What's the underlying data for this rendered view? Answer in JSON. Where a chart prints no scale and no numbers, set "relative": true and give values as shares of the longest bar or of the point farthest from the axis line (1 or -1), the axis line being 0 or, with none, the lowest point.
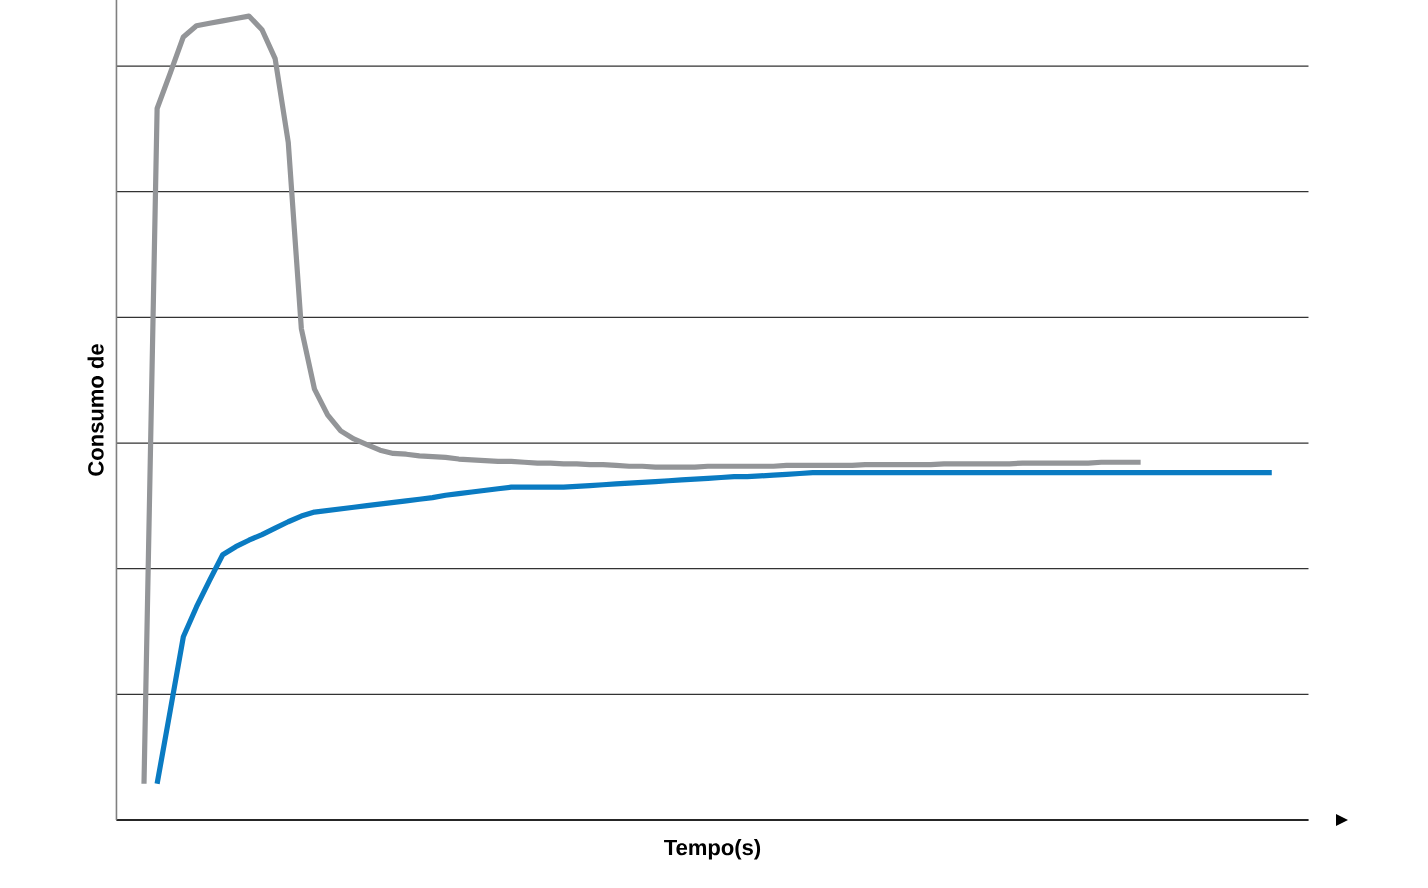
{
  "chart_data": {
    "type": "line",
    "relative": true,
    "xlabel": "Tempo(s)",
    "ylabel": "Consumo de",
    "grid": "y",
    "tick_labels": false,
    "categories": [
      null,
      null,
      null,
      null,
      null,
      null,
      null,
      null,
      null,
      null,
      null,
      null,
      null,
      null,
      null,
      null,
      null,
      null,
      null,
      null,
      null,
      null,
      null,
      null,
      null,
      null,
      null,
      null,
      null,
      null,
      null,
      null,
      null,
      null,
      null,
      null,
      null,
      null,
      null,
      null,
      null,
      null,
      null,
      null,
      null,
      null,
      null,
      null,
      null,
      null,
      null,
      null,
      null,
      null,
      null,
      null,
      null,
      null,
      null,
      null,
      null,
      null,
      null,
      null,
      null,
      null,
      null,
      null,
      null,
      null,
      null,
      null,
      null,
      null,
      null,
      null,
      null,
      null,
      null,
      null,
      null,
      null,
      null,
      null,
      null,
      null,
      null
    ],
    "series": [
      {
        "color": "#939598",
        "values": [
          0.045,
          0.885,
          0.929,
          0.974,
          0.988,
          0.991,
          0.994,
          0.997,
          1,
          0.983,
          0.947,
          0.843,
          0.611,
          0.536,
          0.504,
          0.484,
          0.474,
          0.467,
          0.46,
          0.456,
          0.455,
          0.453,
          0.452,
          0.451,
          0.449,
          0.448,
          0.447,
          0.446,
          0.446,
          0.445,
          0.444,
          0.444,
          0.443,
          0.443,
          0.442,
          0.442,
          0.441,
          0.44,
          0.44,
          0.439,
          0.439,
          0.439,
          0.439,
          0.44,
          0.44,
          0.44,
          0.44,
          0.44,
          0.44,
          0.441,
          0.441,
          0.441,
          0.441,
          0.441,
          0.441,
          0.442,
          0.442,
          0.442,
          0.442,
          0.442,
          0.442,
          0.443,
          0.443,
          0.443,
          0.443,
          0.443,
          0.443,
          0.444,
          0.444,
          0.444,
          0.444,
          0.444,
          0.444,
          0.445,
          0.445,
          0.445,
          0.445,
          null,
          null,
          null,
          null,
          null,
          null,
          null,
          null,
          null,
          null
        ]
      },
      {
        "color": "#0a7bc2",
        "values": [
          null,
          0.045,
          0.136,
          0.228,
          0.265,
          0.298,
          0.33,
          0.34,
          0.348,
          0.355,
          0.363,
          0.371,
          0.378,
          0.383,
          0.385,
          0.387,
          0.389,
          0.391,
          0.393,
          0.395,
          0.397,
          0.399,
          0.401,
          0.404,
          0.406,
          0.408,
          0.41,
          0.412,
          0.414,
          0.414,
          0.414,
          0.414,
          0.414,
          0.415,
          0.416,
          0.417,
          0.418,
          0.419,
          0.42,
          0.421,
          0.422,
          0.423,
          0.424,
          0.425,
          0.426,
          0.427,
          0.427,
          0.428,
          0.429,
          0.43,
          0.431,
          0.432,
          0.432,
          0.432,
          0.432,
          0.432,
          0.432,
          0.432,
          0.432,
          0.432,
          0.432,
          0.432,
          0.432,
          0.432,
          0.432,
          0.432,
          0.432,
          0.432,
          0.432,
          0.432,
          0.432,
          0.432,
          0.432,
          0.432,
          0.432,
          0.432,
          0.432,
          0.432,
          0.432,
          0.432,
          0.432,
          0.432,
          0.432,
          0.432,
          0.432,
          0.432,
          0.432
        ]
      }
    ]
  }
}
